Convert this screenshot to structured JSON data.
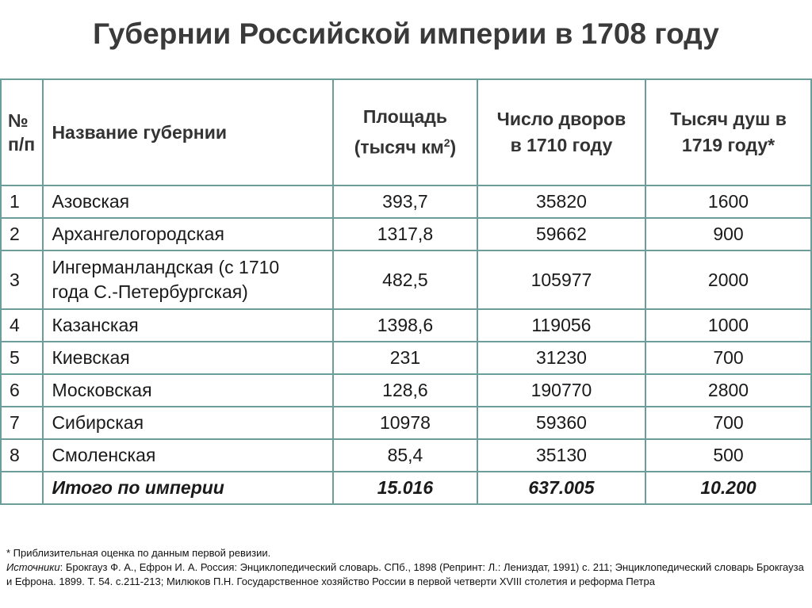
{
  "title": "Губернии Российской империи в 1708 году",
  "headers": {
    "num": "№ п/п",
    "name": "Название губернии",
    "area_line1": "Площадь",
    "area_line2": "(тысяч км",
    "area_sup": "2",
    "area_close": ")",
    "yards": "Число дворов в 1710 году",
    "souls": "Тысяч душ в 1719 году*"
  },
  "rows": [
    {
      "num": "1",
      "name": "Азовская",
      "area": "393,7",
      "yards": "35820",
      "souls": "1600"
    },
    {
      "num": "2",
      "name": "Архангелогородская",
      "area": "1317,8",
      "yards": "59662",
      "souls": "900"
    },
    {
      "num": "3",
      "name": "Ингерманландская (с 1710 года С.-Петербургская)",
      "area": "482,5",
      "yards": "105977",
      "souls": "2000"
    },
    {
      "num": "4",
      "name": "Казанская",
      "area": "1398,6",
      "yards": "119056",
      "souls": "1000"
    },
    {
      "num": "5",
      "name": "Киевская",
      "area": "231",
      "yards": "31230",
      "souls": "700"
    },
    {
      "num": "6",
      "name": "Московская",
      "area": "128,6",
      "yards": "190770",
      "souls": "2800"
    },
    {
      "num": "7",
      "name": "Сибирская",
      "area": "10978",
      "yards": "59360",
      "souls": "700"
    },
    {
      "num": "8",
      "name": "Смоленская",
      "area": "85,4",
      "yards": "35130",
      "souls": "500"
    }
  ],
  "total": {
    "label": "Итого по империи",
    "area": "15.016",
    "yards": "637.005",
    "souls": "10.200"
  },
  "footnote": {
    "note": "* Приблизительная оценка по данным первой ревизии.",
    "sources_label": "Источники",
    "sources_text": ": Брокгауз Ф. А., Ефрон И. А. Россия: Энциклопедический словарь. СПб., 1898 (Репринт: Л.: Лениздат, 1991) с. 211; Энциклопедический словарь Брокгауза и Ефрона. 1899. Т. 54. с.211-213; Милюков П.Н. Государственное хозяйство России в первой четверти XVIII столетия и реформа Петра"
  }
}
